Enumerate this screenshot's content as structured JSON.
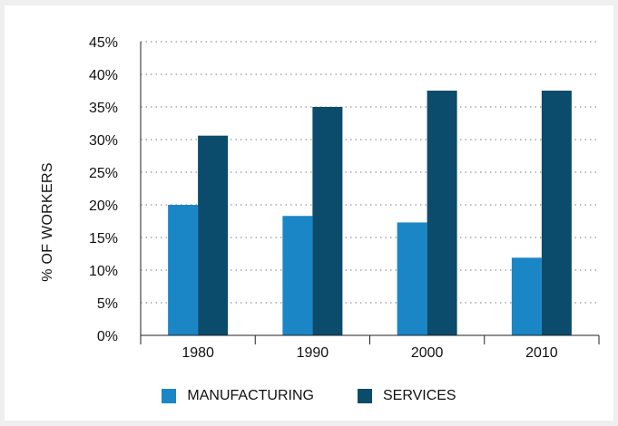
{
  "chart_data": {
    "type": "bar",
    "categories": [
      "1980",
      "1990",
      "2000",
      "2010"
    ],
    "series": [
      {
        "name": "MANUFACTURING",
        "values": [
          20.0,
          18.3,
          17.3,
          11.9
        ],
        "color": "#1a86c6"
      },
      {
        "name": "SERVICES",
        "values": [
          30.6,
          35.0,
          37.5,
          37.5
        ],
        "color": "#0b4b6b"
      }
    ],
    "ylabel": "% OF WORKERS",
    "xlabel": "",
    "ylim": [
      0,
      45
    ],
    "yticks": [
      "0%",
      "5%",
      "10%",
      "15%",
      "20%",
      "25%",
      "30%",
      "35%",
      "40%",
      "45%"
    ],
    "grid": true,
    "legend_position": "bottom"
  }
}
